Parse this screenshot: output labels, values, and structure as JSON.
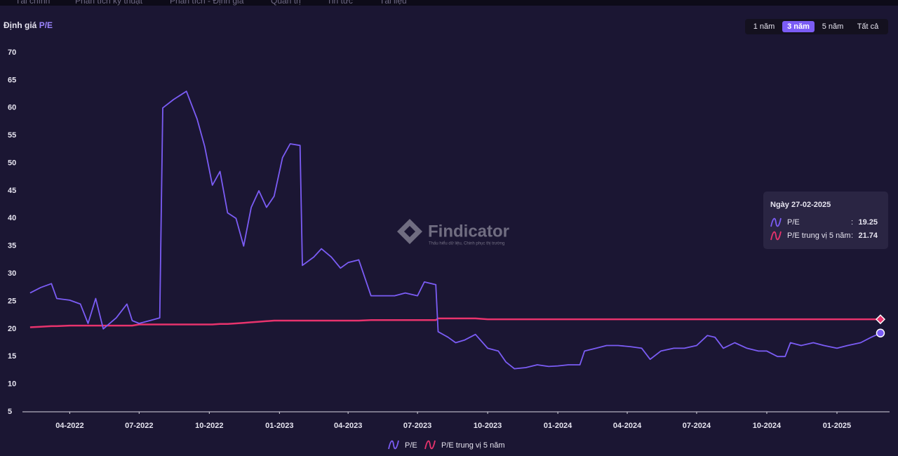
{
  "nav": [
    "Tài chính",
    "Phân tích kỹ thuật",
    "Phân tích - Định giá",
    "Quản trị",
    "Tin tức",
    "Tài liệu"
  ],
  "header": {
    "title": "Định giá",
    "metric": "P/E"
  },
  "range_buttons": [
    {
      "label": "1 năm",
      "active": false
    },
    {
      "label": "3 năm",
      "active": true
    },
    {
      "label": "5 năm",
      "active": false
    },
    {
      "label": "Tất cả",
      "active": false
    }
  ],
  "watermark": {
    "brand": "Findicator",
    "tagline": "Thấu hiểu dữ liệu, Chinh phục thị trường"
  },
  "tooltip": {
    "prefix": "Ngày"
  },
  "chart_data": {
    "type": "line",
    "x": [
      "08-02-2022",
      "22-02-2022",
      "08-03-2022",
      "15-03-2022",
      "01-04-2022",
      "15-04-2022",
      "25-04-2022",
      "05-05-2022",
      "15-05-2022",
      "01-06-2022",
      "15-06-2022",
      "22-06-2022",
      "01-07-2022",
      "15-07-2022",
      "28-07-2022",
      "01-08-2022",
      "15-08-2022",
      "01-09-2022",
      "15-09-2022",
      "25-09-2022",
      "05-10-2022",
      "15-10-2022",
      "25-10-2022",
      "05-11-2022",
      "15-11-2022",
      "25-11-2022",
      "05-12-2022",
      "15-12-2022",
      "25-12-2022",
      "05-01-2023",
      "15-01-2023",
      "28-01-2023",
      "31-01-2023",
      "15-02-2023",
      "25-02-2023",
      "10-03-2023",
      "22-03-2023",
      "01-04-2023",
      "15-04-2023",
      "01-05-2023",
      "15-05-2023",
      "01-06-2023",
      "15-06-2023",
      "01-07-2023",
      "10-07-2023",
      "25-07-2023",
      "28-07-2023",
      "10-08-2023",
      "20-08-2023",
      "01-09-2023",
      "15-09-2023",
      "01-10-2023",
      "15-10-2023",
      "25-10-2023",
      "05-11-2023",
      "20-11-2023",
      "05-12-2023",
      "20-12-2023",
      "01-01-2024",
      "15-01-2024",
      "30-01-2024",
      "05-02-2024",
      "20-02-2024",
      "05-03-2024",
      "20-03-2024",
      "05-04-2024",
      "20-04-2024",
      "01-05-2024",
      "15-05-2024",
      "01-06-2024",
      "15-06-2024",
      "01-07-2024",
      "15-07-2024",
      "25-07-2024",
      "05-08-2024",
      "20-08-2024",
      "05-09-2024",
      "20-09-2024",
      "01-10-2024",
      "15-10-2024",
      "25-10-2024",
      "01-11-2024",
      "15-11-2024",
      "01-12-2024",
      "15-12-2024",
      "01-01-2025",
      "15-01-2025",
      "01-02-2025",
      "15-02-2025",
      "27-02-2025"
    ],
    "series": [
      {
        "name": "P/E",
        "color": "#7b5cf5",
        "values": [
          26.5,
          27.5,
          28.2,
          25.5,
          25.2,
          24.5,
          21,
          25.5,
          20,
          22,
          24.5,
          21.5,
          21,
          21.5,
          22,
          60,
          61.5,
          63,
          58,
          53,
          46,
          48.5,
          41,
          40,
          35,
          42,
          45,
          42,
          44,
          51,
          53.5,
          53.2,
          31.5,
          33,
          34.5,
          33,
          31,
          32,
          32.5,
          26,
          26,
          26,
          26.5,
          26,
          28.5,
          28,
          19.5,
          18.5,
          17.5,
          18,
          19,
          16.5,
          16,
          14,
          12.8,
          13,
          13.5,
          13.2,
          13.3,
          13.5,
          13.5,
          16,
          16.5,
          17,
          17,
          16.8,
          16.5,
          14.5,
          16,
          16.5,
          16.5,
          17,
          18.8,
          18.5,
          16.5,
          17.5,
          16.5,
          16,
          16,
          15,
          15,
          17.5,
          17,
          17.5,
          17,
          16.5,
          17,
          17.5,
          18.5,
          19.25
        ]
      },
      {
        "name": "P/E trung vị 5 năm",
        "color": "#e8336d",
        "values": [
          20.3,
          20.4,
          20.5,
          20.5,
          20.6,
          20.6,
          20.6,
          20.6,
          20.6,
          20.6,
          20.6,
          20.6,
          20.8,
          20.8,
          20.8,
          20.8,
          20.8,
          20.8,
          20.8,
          20.8,
          20.8,
          20.9,
          20.9,
          21.0,
          21.1,
          21.2,
          21.3,
          21.4,
          21.5,
          21.5,
          21.5,
          21.5,
          21.5,
          21.5,
          21.5,
          21.5,
          21.5,
          21.5,
          21.5,
          21.6,
          21.6,
          21.6,
          21.6,
          21.6,
          21.6,
          21.6,
          21.9,
          21.9,
          21.9,
          21.9,
          21.9,
          21.74,
          21.74,
          21.74,
          21.74,
          21.74,
          21.74,
          21.74,
          21.74,
          21.74,
          21.74,
          21.74,
          21.74,
          21.74,
          21.74,
          21.74,
          21.74,
          21.74,
          21.74,
          21.74,
          21.74,
          21.74,
          21.74,
          21.74,
          21.74,
          21.74,
          21.74,
          21.74,
          21.74,
          21.74,
          21.74,
          21.74,
          21.74,
          21.74,
          21.74,
          21.74,
          21.74,
          21.74,
          21.74,
          21.74
        ]
      }
    ],
    "xlim": [
      "29-01-2022",
      "11-03-2025"
    ],
    "xticks": [
      {
        "value": "01-04-2022",
        "label": "04-2022"
      },
      {
        "value": "01-07-2022",
        "label": "07-2022"
      },
      {
        "value": "01-10-2022",
        "label": "10-2022"
      },
      {
        "value": "01-01-2023",
        "label": "01-2023"
      },
      {
        "value": "01-04-2023",
        "label": "04-2023"
      },
      {
        "value": "01-07-2023",
        "label": "07-2023"
      },
      {
        "value": "01-10-2023",
        "label": "10-2023"
      },
      {
        "value": "01-01-2024",
        "label": "01-2024"
      },
      {
        "value": "01-04-2024",
        "label": "04-2024"
      },
      {
        "value": "01-07-2024",
        "label": "07-2024"
      },
      {
        "value": "01-10-2024",
        "label": "10-2024"
      },
      {
        "value": "01-01-2025",
        "label": "01-2025"
      }
    ],
    "ylim": [
      5,
      70
    ],
    "yticks": [
      5,
      10,
      15,
      20,
      25,
      30,
      35,
      40,
      45,
      50,
      55,
      60,
      65,
      70
    ],
    "grid": false
  }
}
